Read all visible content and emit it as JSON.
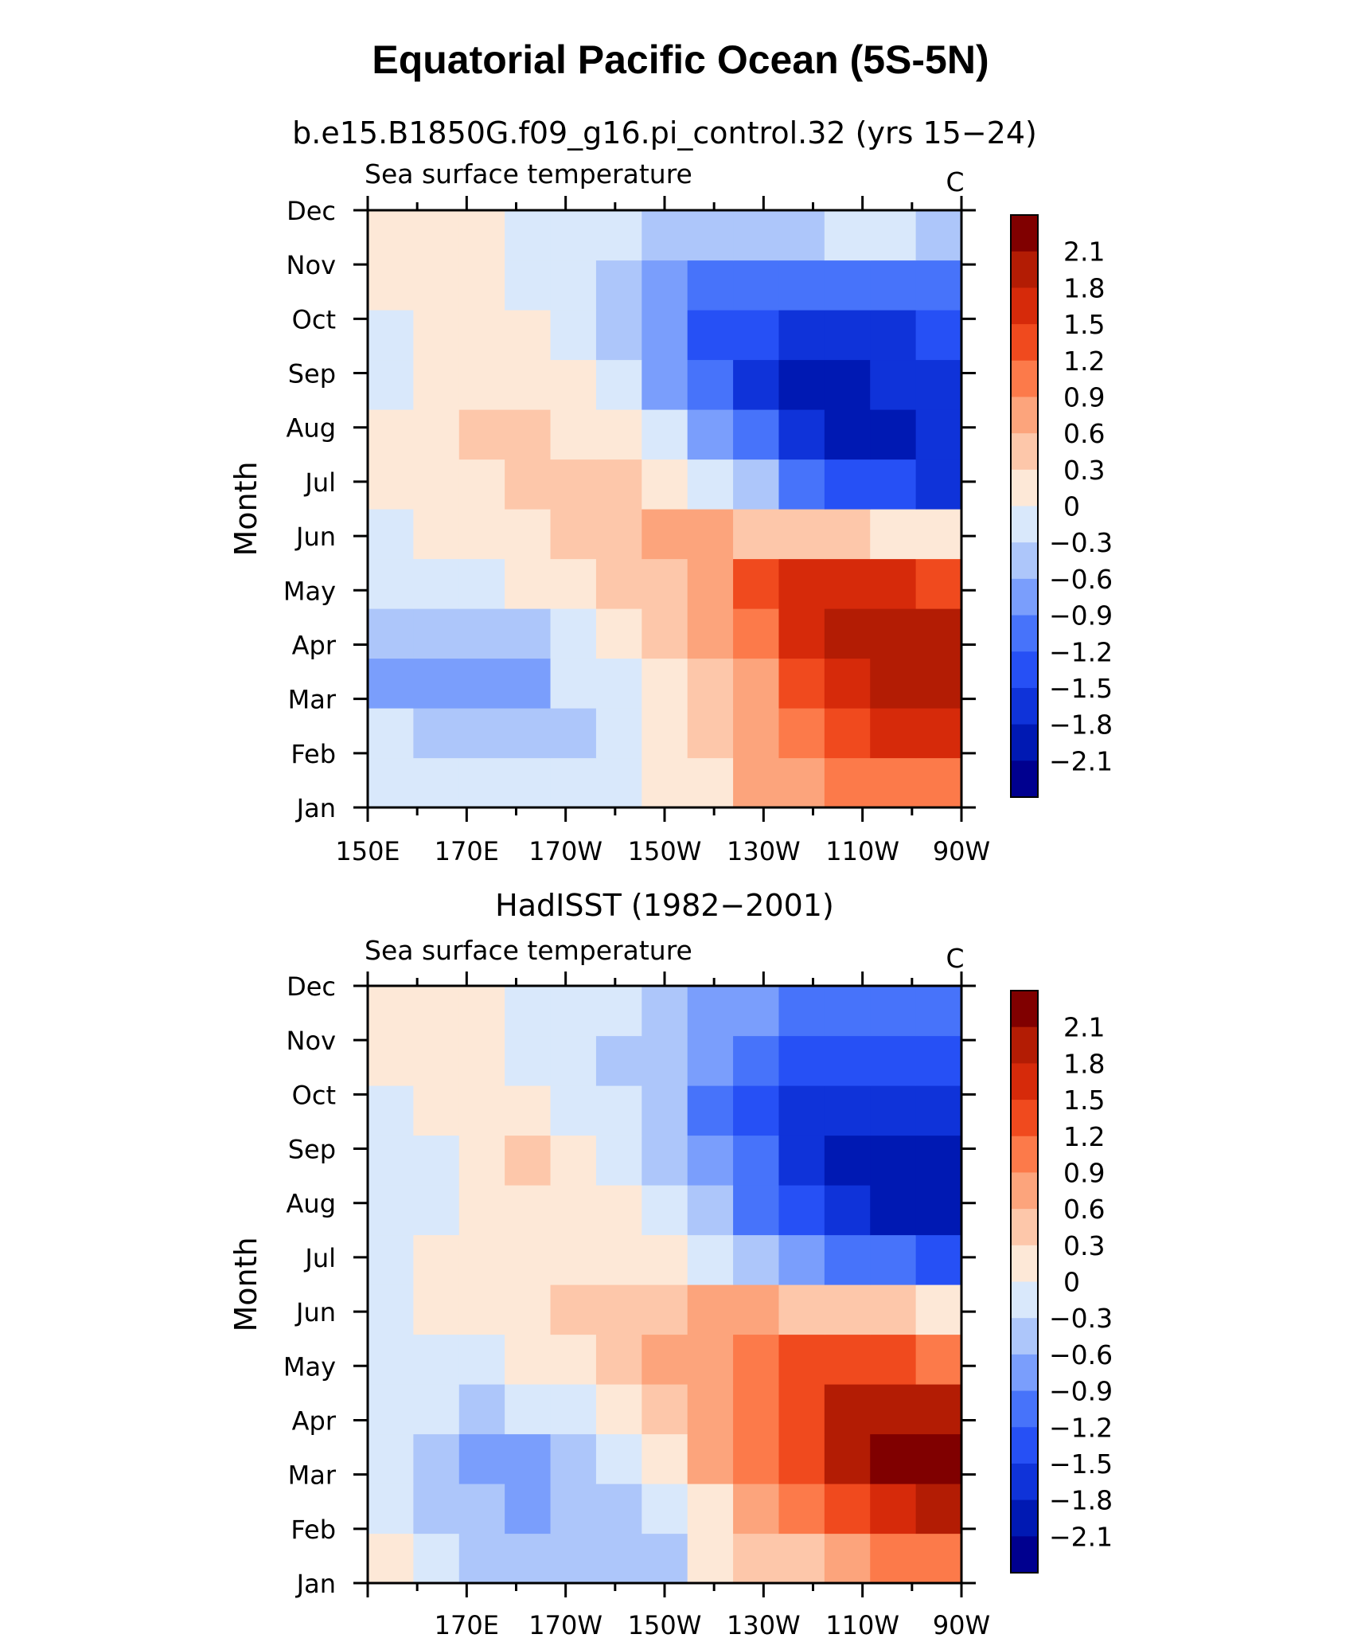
{
  "figure": {
    "title": "Equatorial Pacific Ocean (5S-5N)"
  },
  "colors": {
    "levels": [
      "#00008f",
      "#0019b3",
      "#0f33d9",
      "#2650f5",
      "#4773fa",
      "#7a9efc",
      "#adc6fa",
      "#d9e8fb",
      "#fde8d7",
      "#fdc7aa",
      "#fca47c",
      "#fc7a4a",
      "#f04a1e",
      "#d62a0a",
      "#b31c04",
      "#800000"
    ]
  },
  "chart_data": [
    {
      "type": "heatmap",
      "subtitle": "b.e15.B1850G.f09_g16.pi_control.32 (yrs 15−24)",
      "left_label": "Sea surface temperature",
      "units": "C",
      "ylabel": "Month",
      "months": [
        "Jan",
        "Feb",
        "Mar",
        "Apr",
        "May",
        "Jun",
        "Jul",
        "Aug",
        "Sep",
        "Oct",
        "Nov",
        "Dec"
      ],
      "xticks": [
        "150E",
        "170E",
        "170W",
        "150W",
        "130W",
        "110W",
        "90W"
      ],
      "x_range_deg_east": [
        150,
        270
      ],
      "colorbar_labels": [
        "2.1",
        "1.8",
        "1.5",
        "1.2",
        "0.9",
        "0.6",
        "0.3",
        "0",
        "−0.3",
        "−0.6",
        "−0.9",
        "−1.2",
        "−1.5",
        "−1.8",
        "−2.1"
      ],
      "contour_levels": [
        -2.1,
        -1.8,
        -1.5,
        -1.2,
        -0.9,
        -0.6,
        -0.3,
        0,
        0.3,
        0.6,
        0.9,
        1.2,
        1.5,
        1.8,
        2.1
      ],
      "lon": [
        150,
        160,
        170,
        180,
        190,
        200,
        210,
        220,
        230,
        240,
        250,
        260,
        270
      ],
      "values": [
        [
          -0.1,
          -0.1,
          -0.1,
          -0.1,
          -0.1,
          -0.2,
          0.1,
          0.1,
          0.7,
          0.8,
          1.0,
          1.2,
          1.2
        ],
        [
          -0.2,
          -0.4,
          -0.5,
          -0.5,
          -0.3,
          -0.2,
          0.2,
          0.5,
          0.8,
          1.0,
          1.4,
          1.6,
          1.6
        ],
        [
          -0.6,
          -0.7,
          -0.7,
          -0.6,
          -0.2,
          -0.1,
          0.3,
          0.6,
          0.9,
          1.4,
          1.7,
          1.9,
          1.9
        ],
        [
          -0.3,
          -0.5,
          -0.5,
          -0.4,
          -0.1,
          0.2,
          0.4,
          0.7,
          1.0,
          1.6,
          1.9,
          2.1,
          2.0
        ],
        [
          -0.1,
          -0.1,
          -0.1,
          0.1,
          0.3,
          0.4,
          0.6,
          0.9,
          1.3,
          1.6,
          1.7,
          1.7,
          1.5
        ],
        [
          0.0,
          0.1,
          0.2,
          0.3,
          0.5,
          0.6,
          0.7,
          0.7,
          0.6,
          0.5,
          0.4,
          0.3,
          0.1
        ],
        [
          0.1,
          0.2,
          0.3,
          0.4,
          0.5,
          0.4,
          0.2,
          -0.1,
          -0.5,
          -0.9,
          -1.2,
          -1.4,
          -1.5
        ],
        [
          0.1,
          0.3,
          0.4,
          0.4,
          0.3,
          0.1,
          -0.2,
          -0.6,
          -1.1,
          -1.5,
          -1.8,
          -1.9,
          -1.6
        ],
        [
          -0.1,
          0.2,
          0.2,
          0.2,
          0.1,
          -0.2,
          -0.6,
          -1.1,
          -1.5,
          -1.8,
          -2.0,
          -1.7,
          -1.5
        ],
        [
          -0.1,
          0.1,
          0.1,
          0.1,
          -0.1,
          -0.4,
          -0.8,
          -1.2,
          -1.4,
          -1.5,
          -1.6,
          -1.5,
          -1.4
        ],
        [
          0.1,
          0.1,
          0.1,
          0.0,
          -0.2,
          -0.4,
          -0.7,
          -0.9,
          -1.0,
          -1.1,
          -1.1,
          -1.1,
          -1.0
        ],
        [
          0.3,
          0.1,
          0.1,
          0.0,
          -0.1,
          -0.2,
          -0.4,
          -0.5,
          -0.4,
          -0.3,
          -0.2,
          -0.2,
          -0.3
        ]
      ]
    },
    {
      "type": "heatmap",
      "subtitle": "HadISST (1982−2001)",
      "left_label": "Sea surface temperature",
      "units": "C",
      "ylabel": "Month",
      "months": [
        "Jan",
        "Feb",
        "Mar",
        "Apr",
        "May",
        "Jun",
        "Jul",
        "Aug",
        "Sep",
        "Oct",
        "Nov",
        "Dec"
      ],
      "xticks": [
        "170E",
        "170W",
        "150W",
        "130W",
        "110W",
        "90W"
      ],
      "x_range_deg_east": [
        150,
        270
      ],
      "colorbar_labels": [
        "2.1",
        "1.8",
        "1.5",
        "1.2",
        "0.9",
        "0.6",
        "0.3",
        "0",
        "−0.3",
        "−0.6",
        "−0.9",
        "−1.2",
        "−1.5",
        "−1.8",
        "−2.1"
      ],
      "contour_levels": [
        -2.1,
        -1.8,
        -1.5,
        -1.2,
        -0.9,
        -0.6,
        -0.3,
        0,
        0.3,
        0.6,
        0.9,
        1.2,
        1.5,
        1.8,
        2.1
      ],
      "lon": [
        150,
        160,
        170,
        180,
        190,
        200,
        210,
        220,
        230,
        240,
        250,
        260,
        270
      ],
      "values": [
        [
          0.1,
          -0.1,
          -0.3,
          -0.4,
          -0.5,
          -0.4,
          -0.3,
          0.1,
          0.4,
          0.6,
          0.8,
          1.0,
          1.2
        ],
        [
          -0.2,
          -0.3,
          -0.5,
          -0.6,
          -0.5,
          -0.3,
          0.0,
          0.3,
          0.7,
          1.1,
          1.5,
          1.7,
          1.9
        ],
        [
          -0.2,
          -0.4,
          -0.6,
          -0.6,
          -0.4,
          -0.1,
          0.3,
          0.7,
          1.1,
          1.5,
          1.9,
          2.2,
          2.3
        ],
        [
          -0.1,
          -0.2,
          -0.3,
          -0.2,
          0.0,
          0.2,
          0.5,
          0.8,
          1.1,
          1.5,
          1.9,
          2.1,
          2.0
        ],
        [
          -0.1,
          -0.1,
          0.0,
          0.1,
          0.3,
          0.5,
          0.7,
          0.9,
          1.2,
          1.4,
          1.5,
          1.5,
          1.2
        ],
        [
          -0.1,
          0.1,
          0.1,
          0.2,
          0.4,
          0.5,
          0.6,
          0.7,
          0.7,
          0.6,
          0.5,
          0.4,
          0.2
        ],
        [
          -0.2,
          0.1,
          0.2,
          0.2,
          0.3,
          0.3,
          0.2,
          0.0,
          -0.3,
          -0.6,
          -0.9,
          -1.1,
          -1.2
        ],
        [
          -0.2,
          0.0,
          0.2,
          0.2,
          0.2,
          0.1,
          -0.2,
          -0.5,
          -0.9,
          -1.3,
          -1.6,
          -1.8,
          -1.8
        ],
        [
          -0.1,
          0.0,
          0.3,
          0.4,
          0.2,
          0.0,
          -0.4,
          -0.8,
          -1.1,
          -1.5,
          -1.8,
          -1.9,
          -1.9
        ],
        [
          0.0,
          0.1,
          0.1,
          0.1,
          0.0,
          -0.2,
          -0.5,
          -0.9,
          -1.2,
          -1.5,
          -1.6,
          -1.7,
          -1.7
        ],
        [
          0.1,
          0.1,
          0.1,
          0.0,
          -0.1,
          -0.3,
          -0.5,
          -0.8,
          -1.0,
          -1.2,
          -1.4,
          -1.4,
          -1.3
        ],
        [
          0.1,
          0.1,
          0.1,
          0.0,
          -0.1,
          -0.2,
          -0.4,
          -0.6,
          -0.8,
          -0.9,
          -1.0,
          -1.0,
          -0.9
        ]
      ]
    }
  ]
}
